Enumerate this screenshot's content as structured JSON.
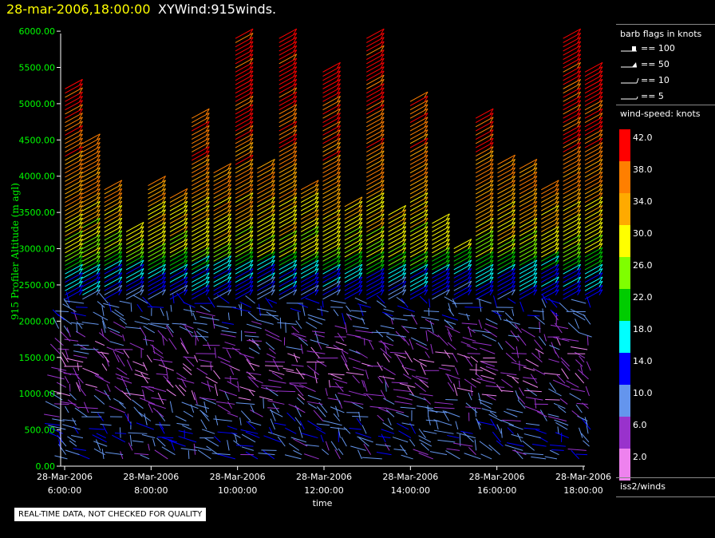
{
  "header": {
    "datetime": "28-mar-2006,18:00:00",
    "title": "XYWind:915winds."
  },
  "footer_note": "REAL-TIME DATA, NOT CHECKED FOR QUALITY",
  "sidebar": {
    "barb_title": "barb flags in knots",
    "barb_legend": [
      "== 100",
      "== 50",
      "== 10",
      "== 5"
    ],
    "speed_title": "wind-speed: knots",
    "speed_ticks": [
      "42.0",
      "38.0",
      "34.0",
      "30.0",
      "26.0",
      "22.0",
      "18.0",
      "14.0",
      "10.0",
      "6.0",
      "2.0"
    ],
    "speed_colors": [
      "#ff0000",
      "#ff7f00",
      "#ffaa00",
      "#ffff00",
      "#7fff00",
      "#00cc00",
      "#00ffff",
      "#0000ff",
      "#6495ed",
      "#9932cc",
      "#ee82ee"
    ],
    "source": "iss2/winds"
  },
  "chart_data": {
    "type": "scatter",
    "title": "XYWind:915winds.",
    "xlabel": "time",
    "ylabel": "915 Profiler Altitude (m agl)",
    "ylim": [
      0,
      6100
    ],
    "y_ticks": [
      "0.00",
      "500.00",
      "1000.00",
      "1500.00",
      "2000.00",
      "2500.00",
      "3000.00",
      "3500.00",
      "4000.00",
      "4500.00",
      "5000.00",
      "5500.00",
      "6000.00"
    ],
    "x_ticks": [
      {
        "date": "28-Mar-2006",
        "time": "6:00:00"
      },
      {
        "date": "28-Mar-2006",
        "time": "8:00:00"
      },
      {
        "date": "28-Mar-2006",
        "time": "10:00:00"
      },
      {
        "date": "28-Mar-2006",
        "time": "12:00:00"
      },
      {
        "date": "28-Mar-2006",
        "time": "14:00:00"
      },
      {
        "date": "28-Mar-2006",
        "time": "16:00:00"
      },
      {
        "date": "28-Mar-2006",
        "time": "18:00:00"
      }
    ],
    "x_hours": [
      6,
      18
    ],
    "profile_times_h": [
      6.1,
      6.5,
      7.0,
      7.5,
      8.0,
      8.5,
      9.0,
      9.5,
      10.0,
      10.5,
      11.0,
      11.5,
      12.0,
      12.5,
      13.0,
      13.5,
      14.0,
      14.5,
      15.0,
      15.5,
      16.0,
      16.5,
      17.0,
      17.5,
      18.0
    ],
    "profile_tops_m": [
      5250,
      4500,
      3850,
      3250,
      3900,
      3750,
      4850,
      4100,
      5950,
      4150,
      5950,
      3850,
      5450,
      3600,
      5950,
      3500,
      5050,
      3350,
      3000,
      4850,
      4200,
      4150,
      3850,
      5950,
      5450
    ],
    "speed_profile": [
      {
        "alt_m": 200,
        "speed_kt": 10
      },
      {
        "alt_m": 500,
        "speed_kt": 12
      },
      {
        "alt_m": 900,
        "speed_kt": 6
      },
      {
        "alt_m": 1400,
        "speed_kt": 4
      },
      {
        "alt_m": 1900,
        "speed_kt": 9
      },
      {
        "alt_m": 2300,
        "speed_kt": 13
      },
      {
        "alt_m": 2600,
        "speed_kt": 16
      },
      {
        "alt_m": 2900,
        "speed_kt": 27
      },
      {
        "alt_m": 3300,
        "speed_kt": 31
      },
      {
        "alt_m": 3800,
        "speed_kt": 36
      },
      {
        "alt_m": 4500,
        "speed_kt": 39
      },
      {
        "alt_m": 5200,
        "speed_kt": 42
      }
    ],
    "grid": false,
    "legend": "right"
  }
}
